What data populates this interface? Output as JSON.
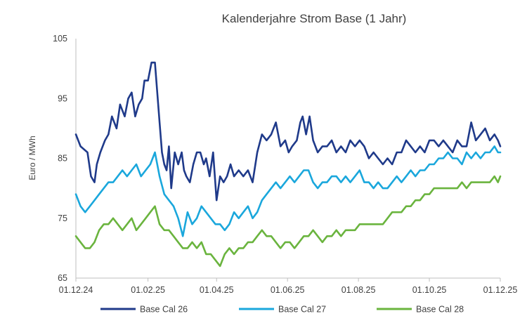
{
  "chart_data": {
    "type": "line",
    "title": "Kalenderjahre Strom Base (1 Jahr)",
    "xlabel": "",
    "ylabel": "Euro / MWh",
    "ylim": [
      65,
      105
    ],
    "y_ticks": [
      65,
      75,
      85,
      95,
      105
    ],
    "x_tick_labels": [
      "01.12.24",
      "01.02.25",
      "01.04.25",
      "01.06.25",
      "01.08.25",
      "01.10.25",
      "01.12.25"
    ],
    "x_range_days": [
      0,
      365
    ],
    "x_tick_days": [
      0,
      62,
      121,
      182,
      243,
      304,
      365
    ],
    "grid": false,
    "legend": "bottom",
    "series": [
      {
        "name": "Base Cal 26",
        "color": "#1f3a8a",
        "days": [
          0,
          4,
          10,
          13,
          16,
          18,
          21,
          25,
          28,
          31,
          35,
          38,
          42,
          45,
          48,
          51,
          54,
          57,
          59,
          62,
          65,
          68,
          70,
          72,
          74,
          76,
          78,
          80,
          82,
          85,
          88,
          91,
          93,
          95,
          98,
          101,
          104,
          107,
          110,
          112,
          115,
          118,
          121,
          124,
          127,
          130,
          133,
          136,
          140,
          144,
          148,
          152,
          156,
          160,
          164,
          168,
          172,
          176,
          180,
          183,
          186,
          190,
          193,
          195,
          198,
          201,
          204,
          208,
          212,
          216,
          220,
          224,
          228,
          232,
          236,
          240,
          244,
          248,
          252,
          256,
          260,
          264,
          268,
          272,
          276,
          280,
          284,
          288,
          292,
          296,
          300,
          304,
          308,
          312,
          316,
          320,
          324,
          328,
          332,
          336,
          340,
          344,
          348,
          352,
          356,
          360,
          363,
          365
        ],
        "values": [
          89,
          87,
          86,
          82,
          81,
          84,
          86,
          88,
          89,
          92,
          90,
          94,
          92,
          95,
          96,
          92,
          94,
          95,
          98,
          98,
          101,
          101,
          96,
          91,
          86,
          84,
          83,
          87,
          80,
          86,
          84,
          86,
          83,
          82,
          81,
          84,
          86,
          86,
          84,
          85,
          82,
          86,
          78,
          82,
          81,
          82,
          84,
          82,
          83,
          82,
          83,
          81,
          86,
          89,
          88,
          89,
          91,
          87,
          88,
          86,
          87,
          88,
          91,
          92,
          89,
          92,
          88,
          86,
          87,
          87,
          88,
          86,
          87,
          86,
          88,
          87,
          88,
          87,
          85,
          86,
          85,
          84,
          85,
          84,
          86,
          86,
          88,
          87,
          86,
          87,
          86,
          88,
          88,
          87,
          88,
          87,
          86,
          88,
          87,
          87,
          91,
          88,
          89,
          90,
          88,
          89,
          88,
          87
        ]
      },
      {
        "name": "Base Cal 27",
        "color": "#1aa7dc",
        "days": [
          0,
          4,
          8,
          12,
          16,
          20,
          24,
          28,
          32,
          36,
          40,
          44,
          48,
          52,
          56,
          60,
          64,
          68,
          72,
          76,
          80,
          84,
          88,
          92,
          96,
          100,
          104,
          108,
          112,
          116,
          120,
          124,
          128,
          132,
          136,
          140,
          144,
          148,
          152,
          156,
          160,
          164,
          168,
          172,
          176,
          180,
          184,
          188,
          192,
          196,
          200,
          204,
          208,
          212,
          216,
          220,
          224,
          228,
          232,
          236,
          240,
          244,
          248,
          252,
          256,
          260,
          264,
          268,
          272,
          276,
          280,
          284,
          288,
          292,
          296,
          300,
          304,
          308,
          312,
          316,
          320,
          324,
          328,
          332,
          336,
          340,
          344,
          348,
          352,
          356,
          360,
          363,
          365
        ],
        "values": [
          79,
          77,
          76,
          77,
          78,
          79,
          80,
          81,
          81,
          82,
          83,
          82,
          83,
          84,
          82,
          83,
          84,
          86,
          82,
          79,
          78,
          77,
          75,
          72,
          76,
          74,
          75,
          77,
          76,
          75,
          74,
          74,
          73,
          74,
          76,
          75,
          76,
          77,
          75,
          76,
          78,
          79,
          80,
          81,
          80,
          81,
          82,
          81,
          82,
          83,
          83,
          81,
          80,
          81,
          81,
          82,
          82,
          81,
          82,
          81,
          82,
          83,
          81,
          81,
          80,
          81,
          80,
          80,
          81,
          82,
          81,
          82,
          83,
          82,
          83,
          83,
          84,
          84,
          85,
          85,
          86,
          85,
          85,
          84,
          86,
          85,
          86,
          85,
          86,
          86,
          87,
          86,
          86
        ]
      },
      {
        "name": "Base Cal 28",
        "color": "#6ab43e",
        "days": [
          0,
          4,
          8,
          12,
          16,
          20,
          24,
          28,
          32,
          36,
          40,
          44,
          48,
          52,
          56,
          60,
          64,
          68,
          72,
          76,
          80,
          84,
          88,
          92,
          96,
          100,
          104,
          108,
          112,
          116,
          120,
          124,
          128,
          132,
          136,
          140,
          144,
          148,
          152,
          156,
          160,
          164,
          168,
          172,
          176,
          180,
          184,
          188,
          192,
          196,
          200,
          204,
          208,
          212,
          216,
          220,
          224,
          228,
          232,
          236,
          240,
          244,
          248,
          252,
          256,
          260,
          264,
          268,
          272,
          276,
          280,
          284,
          288,
          292,
          296,
          300,
          304,
          308,
          312,
          316,
          320,
          324,
          328,
          332,
          336,
          340,
          344,
          348,
          352,
          356,
          360,
          363,
          365
        ],
        "values": [
          72,
          71,
          70,
          70,
          71,
          73,
          74,
          74,
          75,
          74,
          73,
          74,
          75,
          73,
          74,
          75,
          76,
          77,
          74,
          73,
          73,
          72,
          71,
          70,
          70,
          71,
          70,
          71,
          69,
          69,
          68,
          67,
          69,
          70,
          69,
          70,
          70,
          71,
          71,
          72,
          73,
          72,
          72,
          71,
          70,
          71,
          71,
          70,
          71,
          72,
          72,
          73,
          72,
          71,
          72,
          72,
          73,
          72,
          73,
          73,
          73,
          74,
          74,
          74,
          74,
          74,
          74,
          75,
          76,
          76,
          76,
          77,
          77,
          78,
          78,
          79,
          79,
          80,
          80,
          80,
          80,
          80,
          80,
          81,
          80,
          81,
          81,
          81,
          81,
          81,
          82,
          81,
          82
        ]
      }
    ]
  }
}
